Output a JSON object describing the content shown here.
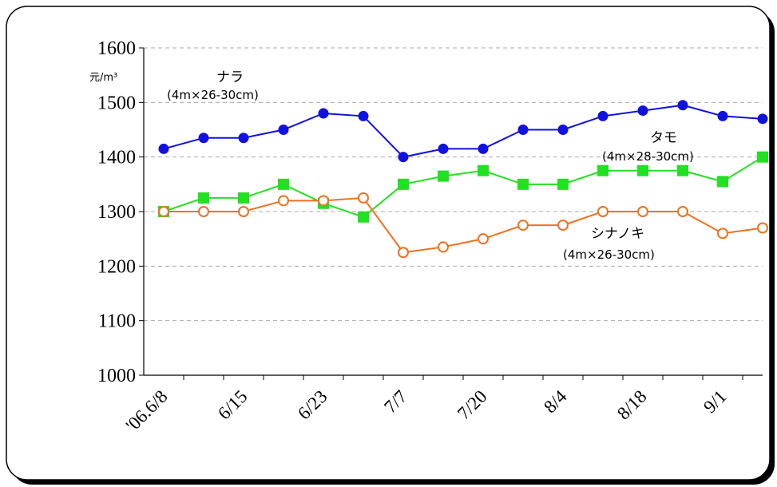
{
  "chart_data": {
    "type": "line",
    "ylabel": "元/m³",
    "ylim": [
      1000,
      1600
    ],
    "yticks": [
      1000,
      1100,
      1200,
      1300,
      1400,
      1500,
      1600
    ],
    "x_tick_labels": [
      "'06.6/8",
      "6/15",
      "6/23",
      "7/7",
      "7/20",
      "8/4",
      "8/18",
      "9/1"
    ],
    "grid": "horizontal-dashed",
    "series": [
      {
        "name": "ナラ",
        "spec": "(4m×26-30cm)",
        "color": "#1010E0",
        "marker": "filled-circle",
        "values": [
          1415,
          1435,
          1435,
          1450,
          1480,
          1475,
          1400,
          1415,
          1415,
          1450,
          1450,
          1475,
          1485,
          1495,
          1475,
          1470
        ]
      },
      {
        "name": "タモ",
        "spec": "(4m×28-30cm)",
        "color": "#22E022",
        "marker": "filled-square",
        "values": [
          1300,
          1325,
          1325,
          1350,
          1315,
          1290,
          1350,
          1365,
          1375,
          1350,
          1350,
          1375,
          1375,
          1375,
          1355,
          1400
        ]
      },
      {
        "name": "シナノキ",
        "spec": "(4m×26-30cm)",
        "color": "#F07020",
        "marker": "open-circle",
        "values": [
          1300,
          1300,
          1300,
          1320,
          1320,
          1325,
          1225,
          1235,
          1250,
          1275,
          1275,
          1300,
          1300,
          1300,
          1260,
          1270
        ]
      }
    ]
  }
}
